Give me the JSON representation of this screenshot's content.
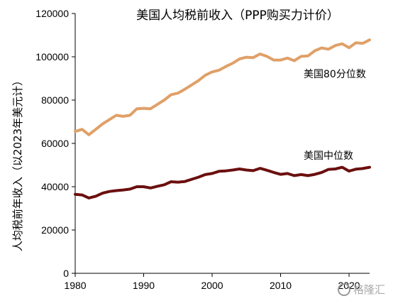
{
  "chart_data": {
    "type": "line",
    "title": "美国人均税前收入（PPP购买力计价）",
    "ylabel": "人均税前年收入（以2023年美元计）",
    "xlabel": "",
    "xlim": [
      1980,
      2023
    ],
    "ylim": [
      0,
      120000
    ],
    "xticks": [
      "1980",
      "1990",
      "2000",
      "2010",
      "2020"
    ],
    "yticks": [
      "0",
      "20000",
      "40000",
      "60000",
      "80000",
      "100000",
      "120000"
    ],
    "grid": false,
    "x": [
      1980,
      1981,
      1982,
      1983,
      1984,
      1985,
      1986,
      1987,
      1988,
      1989,
      1990,
      1991,
      1992,
      1993,
      1994,
      1995,
      1996,
      1997,
      1998,
      1999,
      2000,
      2001,
      2002,
      2003,
      2004,
      2005,
      2006,
      2007,
      2008,
      2009,
      2010,
      2011,
      2012,
      2013,
      2014,
      2015,
      2016,
      2017,
      2018,
      2019,
      2020,
      2021,
      2022,
      2023
    ],
    "series": [
      {
        "name": "美国80分位数",
        "color": "#E0A068",
        "values": [
          65500,
          66500,
          64000,
          66500,
          69000,
          71000,
          73000,
          72500,
          73000,
          76000,
          76200,
          76000,
          78000,
          80000,
          82500,
          83200,
          85000,
          87000,
          89000,
          91500,
          93000,
          93800,
          95500,
          97000,
          99000,
          99800,
          99600,
          101300,
          100200,
          98500,
          98500,
          99400,
          98200,
          100200,
          100400,
          102800,
          104100,
          103500,
          105200,
          106000,
          104200,
          106500,
          106200,
          107800
        ]
      },
      {
        "name": "美国中位数",
        "color": "#6B0F0F",
        "values": [
          36500,
          36200,
          34800,
          35600,
          37000,
          37800,
          38200,
          38500,
          38900,
          40000,
          40000,
          39400,
          40200,
          40900,
          42300,
          42100,
          42400,
          43400,
          44400,
          45600,
          46100,
          47100,
          47300,
          47700,
          48200,
          47700,
          47400,
          48500,
          47600,
          46600,
          45700,
          46100,
          45100,
          45600,
          45100,
          45700,
          46600,
          48000,
          48200,
          49000,
          47200,
          48100,
          48400,
          49000
        ]
      }
    ]
  },
  "watermark": "格隆汇"
}
